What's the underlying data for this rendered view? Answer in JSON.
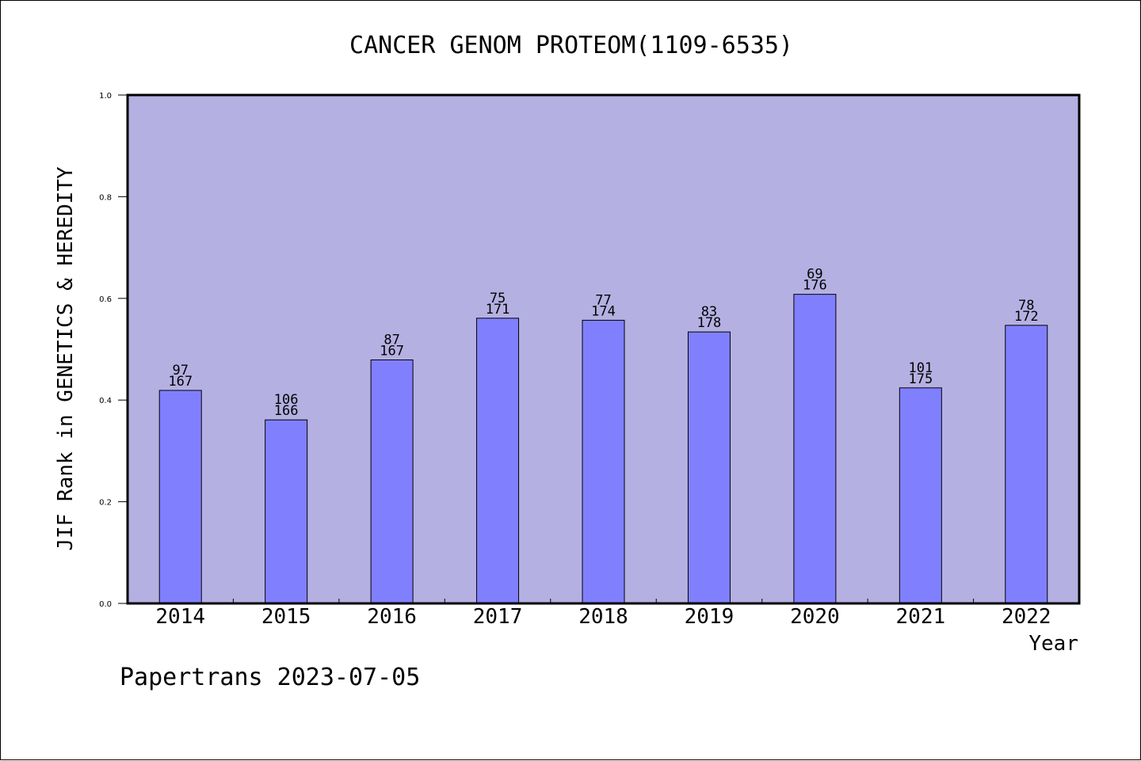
{
  "chart_data": {
    "type": "bar",
    "title": "CANCER GENOM PROTEOM(1109-6535)",
    "xlabel": "Year",
    "ylabel": "JIF Rank in GENETICS & HEREDITY",
    "ylim": [
      0,
      1.0
    ],
    "yticks": [
      "0.0",
      "0.2",
      "0.4",
      "0.6",
      "0.8",
      "1.0"
    ],
    "categories": [
      "2014",
      "2015",
      "2016",
      "2017",
      "2018",
      "2019",
      "2020",
      "2021",
      "2022"
    ],
    "values": [
      0.419,
      0.361,
      0.479,
      0.561,
      0.557,
      0.534,
      0.608,
      0.424,
      0.547
    ],
    "rank": [
      "97",
      "106",
      "87",
      "75",
      "77",
      "83",
      "69",
      "101",
      "78"
    ],
    "total": [
      "167",
      "166",
      "167",
      "171",
      "174",
      "178",
      "176",
      "175",
      "172"
    ],
    "grid": false,
    "colors": {
      "plot_bg": "#b5b0e2",
      "bar": "#8080ff",
      "bar_edge": "#000000"
    }
  },
  "footer": {
    "text": "Papertrans 2023-07-05"
  }
}
